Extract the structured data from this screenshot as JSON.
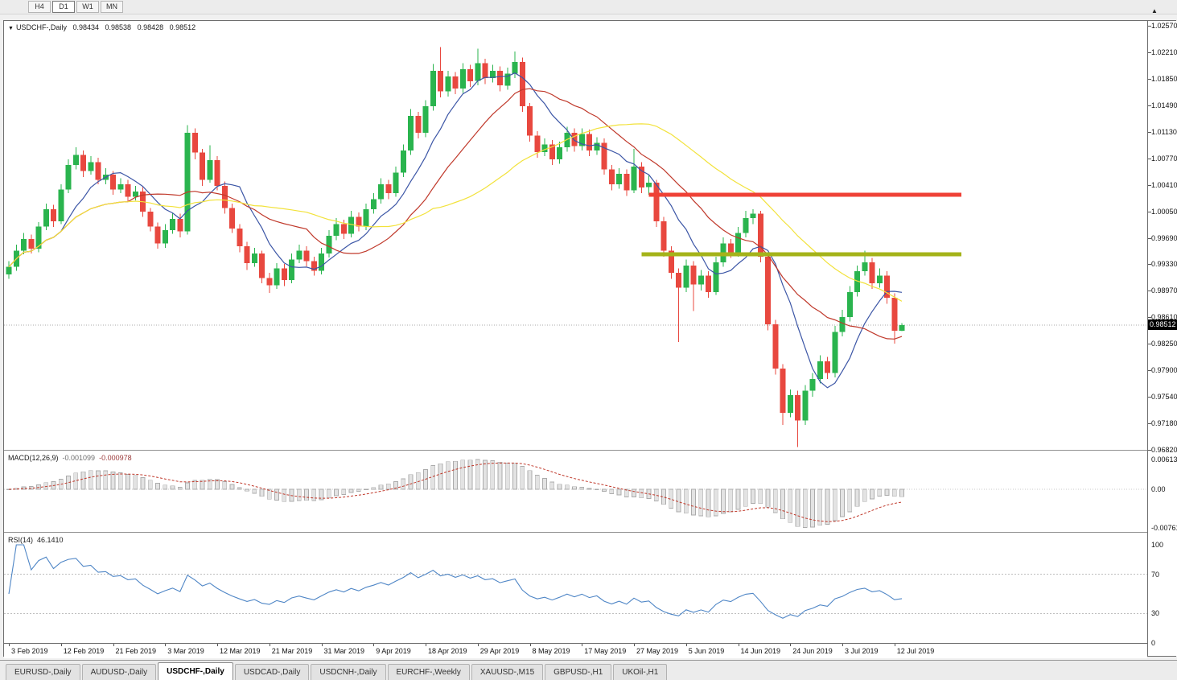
{
  "toolbar": {
    "timeframes": [
      {
        "label": "H4",
        "active": false
      },
      {
        "label": "D1",
        "active": true
      },
      {
        "label": "W1",
        "active": false
      },
      {
        "label": "MN",
        "active": false
      }
    ]
  },
  "header": {
    "symbol": "USDCHF-,Daily",
    "open": "0.98434",
    "high": "0.98538",
    "low": "0.98428",
    "close": "0.98512"
  },
  "price_axis": {
    "labels": [
      "1.02570",
      "1.02210",
      "1.01850",
      "1.01490",
      "1.01130",
      "1.00770",
      "1.00410",
      "1.00050",
      "0.99690",
      "0.99330",
      "0.98970",
      "0.98610",
      "0.98250",
      "0.97900",
      "0.97540",
      "0.97180",
      "0.96820"
    ],
    "top": 1.0257,
    "bottom": 0.9682,
    "current_price": "0.98512"
  },
  "date_axis": {
    "labels": [
      "3 Feb 2019",
      "12 Feb 2019",
      "21 Feb 2019",
      "3 Mar 2019",
      "12 Mar 2019",
      "21 Mar 2019",
      "31 Mar 2019",
      "9 Apr 2019",
      "18 Apr 2019",
      "29 Apr 2019",
      "8 May 2019",
      "17 May 2019",
      "27 May 2019",
      "5 Jun 2019",
      "14 Jun 2019",
      "24 Jun 2019",
      "3 Jul 2019",
      "12 Jul 2019"
    ]
  },
  "macd_panel": {
    "name": "MACD(12,26,9)",
    "value_main": "-0.001099",
    "value_signal": "-0.000978",
    "axis_labels": [
      "0.00613",
      "0.00",
      "-0.00761"
    ]
  },
  "rsi_panel": {
    "name": "RSI(14)",
    "value": "46.1410",
    "axis_labels": [
      "100",
      "70",
      "30",
      "0"
    ],
    "levels": [
      70,
      30
    ]
  },
  "tabs": [
    {
      "label": "EURUSD-,Daily",
      "active": false
    },
    {
      "label": "AUDUSD-,Daily",
      "active": false
    },
    {
      "label": "USDCHF-,Daily",
      "active": true
    },
    {
      "label": "USDCAD-,Daily",
      "active": false
    },
    {
      "label": "USDCNH-,Daily",
      "active": false
    },
    {
      "label": "EURCHF-,Weekly",
      "active": false
    },
    {
      "label": "XAUUSD-,M15",
      "active": false
    },
    {
      "label": "GBPUSD-,H1",
      "active": false
    },
    {
      "label": "UKOil-,H1",
      "active": false
    }
  ],
  "colors": {
    "bull": "#2ab44e",
    "bear": "#e8483f",
    "ma_fast": "#3c56a6",
    "ma_mid": "#c0392b",
    "ma_slow": "#f2e23b",
    "hline_red": "#ef4136",
    "hline_olive": "#a4b319",
    "macd_hist_fill": "#e3e3e3",
    "macd_hist_stroke": "#ababab",
    "macd_signal": "#c0392b",
    "rsi_line": "#4f86c6",
    "current_price_line": "#a8a8a8"
  },
  "chart_data": {
    "type": "candlestick",
    "symbol": "USDCHF",
    "timeframe": "Daily",
    "title": "USDCHF-,Daily",
    "moving_averages": [
      {
        "period": 8,
        "color_key": "ma_fast"
      },
      {
        "period": 17,
        "color_key": "ma_mid"
      },
      {
        "period": 34,
        "color_key": "ma_slow"
      }
    ],
    "objects": [
      {
        "type": "hline",
        "price": 1.0028,
        "color_key": "hline_red",
        "from_index": 86,
        "to_index": 128,
        "thickness": 5
      },
      {
        "type": "hline",
        "price": 0.9947,
        "color_key": "hline_olive",
        "from_index": 85,
        "to_index": 128,
        "thickness": 5
      }
    ],
    "indicators": [
      {
        "type": "MACD",
        "fast": 12,
        "slow": 26,
        "signal": 9
      },
      {
        "type": "RSI",
        "period": 14
      }
    ],
    "candles": [
      [
        0.992,
        0.9938,
        0.9914,
        0.993
      ],
      [
        0.993,
        0.996,
        0.9925,
        0.9952
      ],
      [
        0.9952,
        0.9976,
        0.9947,
        0.9968
      ],
      [
        0.9968,
        0.9974,
        0.9948,
        0.9955
      ],
      [
        0.9955,
        0.9991,
        0.995,
        0.9985
      ],
      [
        0.9985,
        1.0016,
        0.998,
        1.0008
      ],
      [
        1.0008,
        1.0014,
        0.9984,
        0.9992
      ],
      [
        0.9992,
        1.0042,
        0.9988,
        1.0035
      ],
      [
        1.0035,
        1.0076,
        1.003,
        1.0068
      ],
      [
        1.0068,
        1.0092,
        1.0062,
        1.0082
      ],
      [
        1.0082,
        1.0088,
        1.0052,
        1.006
      ],
      [
        1.006,
        1.008,
        1.0055,
        1.0072
      ],
      [
        1.0072,
        1.0078,
        1.0042,
        1.0048
      ],
      [
        1.0048,
        1.0064,
        1.0042,
        1.0055
      ],
      [
        1.0055,
        1.006,
        1.0028,
        1.0035
      ],
      [
        1.0035,
        1.005,
        1.003,
        1.0042
      ],
      [
        1.0042,
        1.0048,
        1.0018,
        1.0025
      ],
      [
        1.0025,
        1.004,
        1.002,
        1.0032
      ],
      [
        1.0032,
        1.0038,
        0.9998,
        1.0005
      ],
      [
        1.0005,
        1.001,
        0.9978,
        0.9985
      ],
      [
        0.9985,
        0.999,
        0.9955,
        0.9962
      ],
      [
        0.9962,
        0.9988,
        0.9956,
        0.998
      ],
      [
        0.998,
        1.0004,
        0.9975,
        0.9995
      ],
      [
        0.9995,
        1.0002,
        0.997,
        0.9978
      ],
      [
        0.9978,
        1.0122,
        0.9974,
        1.0112
      ],
      [
        1.0112,
        1.0118,
        1.0076,
        1.0085
      ],
      [
        1.0085,
        1.009,
        1.004,
        1.0048
      ],
      [
        1.0048,
        1.0095,
        1.0044,
        1.0075
      ],
      [
        1.0075,
        1.008,
        1.0034,
        1.004
      ],
      [
        1.004,
        1.0046,
        1.0002,
        1.001
      ],
      [
        1.001,
        1.0016,
        0.9976,
        0.9982
      ],
      [
        0.9982,
        0.9988,
        0.995,
        0.9958
      ],
      [
        0.9958,
        0.9964,
        0.9926,
        0.9935
      ],
      [
        0.9935,
        0.9956,
        0.993,
        0.9948
      ],
      [
        0.9948,
        0.9952,
        0.9908,
        0.9915
      ],
      [
        0.9915,
        0.9922,
        0.9895,
        0.9905
      ],
      [
        0.9905,
        0.9935,
        0.99,
        0.9928
      ],
      [
        0.9928,
        0.9934,
        0.9904,
        0.9912
      ],
      [
        0.9912,
        0.9948,
        0.9908,
        0.994
      ],
      [
        0.994,
        0.996,
        0.9935,
        0.9952
      ],
      [
        0.9952,
        0.9958,
        0.9931,
        0.9938
      ],
      [
        0.9938,
        0.9944,
        0.9918,
        0.9925
      ],
      [
        0.9925,
        0.9956,
        0.992,
        0.9948
      ],
      [
        0.9948,
        0.998,
        0.9943,
        0.9972
      ],
      [
        0.9972,
        0.9996,
        0.9966,
        0.9988
      ],
      [
        0.9988,
        0.9994,
        0.9968,
        0.9975
      ],
      [
        0.9975,
        1.0006,
        0.997,
        0.9998
      ],
      [
        0.9998,
        1.0004,
        0.9978,
        0.9985
      ],
      [
        0.9985,
        1.0016,
        0.998,
        1.0008
      ],
      [
        1.0008,
        1.003,
        1.0002,
        1.0022
      ],
      [
        1.0022,
        1.005,
        1.0016,
        1.0042
      ],
      [
        1.0042,
        1.0048,
        1.0022,
        1.003
      ],
      [
        1.003,
        1.0066,
        1.0025,
        1.0058
      ],
      [
        1.0058,
        1.0096,
        1.0052,
        1.0088
      ],
      [
        1.0088,
        1.0144,
        1.0082,
        1.0135
      ],
      [
        1.0135,
        1.014,
        1.0104,
        1.0112
      ],
      [
        1.0112,
        1.0156,
        1.0106,
        1.0148
      ],
      [
        1.0148,
        1.0205,
        1.0142,
        1.0196
      ],
      [
        1.0196,
        1.0228,
        1.016,
        1.0168
      ],
      [
        1.0168,
        1.0196,
        1.0161,
        1.0188
      ],
      [
        1.0188,
        1.0194,
        1.0164,
        1.0172
      ],
      [
        1.0172,
        1.0206,
        1.0166,
        1.0198
      ],
      [
        1.0198,
        1.0204,
        1.0174,
        1.0182
      ],
      [
        1.0182,
        1.0226,
        1.0176,
        1.0206
      ],
      [
        1.0206,
        1.0212,
        1.0178,
        1.0186
      ],
      [
        1.0186,
        1.0204,
        1.018,
        1.0196
      ],
      [
        1.0196,
        1.0202,
        1.0168,
        1.0176
      ],
      [
        1.0176,
        1.02,
        1.017,
        1.0192
      ],
      [
        1.0192,
        1.0222,
        1.0186,
        1.0208
      ],
      [
        1.0208,
        1.0214,
        1.014,
        1.0148
      ],
      [
        1.0148,
        1.0152,
        1.01,
        1.0108
      ],
      [
        1.0108,
        1.0114,
        1.0078,
        1.0086
      ],
      [
        1.0086,
        1.0104,
        1.008,
        1.0096
      ],
      [
        1.0096,
        1.0102,
        1.0068,
        1.0076
      ],
      [
        1.0076,
        1.01,
        1.007,
        1.0092
      ],
      [
        1.0092,
        1.012,
        1.0086,
        1.0112
      ],
      [
        1.0112,
        1.0118,
        1.0086,
        1.0094
      ],
      [
        1.0094,
        1.0118,
        1.0088,
        1.011
      ],
      [
        1.011,
        1.0116,
        1.008,
        1.0088
      ],
      [
        1.0088,
        1.0106,
        1.0082,
        1.0098
      ],
      [
        1.0098,
        1.0104,
        1.0055,
        1.0062
      ],
      [
        1.0062,
        1.0068,
        1.0034,
        1.0042
      ],
      [
        1.0042,
        1.0064,
        1.0036,
        1.0056
      ],
      [
        1.0056,
        1.0062,
        1.0026,
        1.0034
      ],
      [
        1.0034,
        1.009,
        1.003,
        1.0066
      ],
      [
        1.0066,
        1.0072,
        1.003,
        1.0038
      ],
      [
        1.0038,
        1.0054,
        1.0028,
        1.0044
      ],
      [
        1.0044,
        1.0048,
        0.9984,
        0.9992
      ],
      [
        0.9992,
        0.9998,
        0.9944,
        0.9952
      ],
      [
        0.9952,
        0.9958,
        0.9914,
        0.9922
      ],
      [
        0.9922,
        0.9928,
        0.9828,
        0.9902
      ],
      [
        0.9902,
        0.994,
        0.9896,
        0.9932
      ],
      [
        0.9932,
        0.9938,
        0.987,
        0.9906
      ],
      [
        0.9906,
        0.9926,
        0.9898,
        0.9918
      ],
      [
        0.9918,
        0.9924,
        0.9888,
        0.9896
      ],
      [
        0.9896,
        0.9944,
        0.9892,
        0.9936
      ],
      [
        0.9936,
        0.997,
        0.993,
        0.9962
      ],
      [
        0.9962,
        0.9968,
        0.9942,
        0.995
      ],
      [
        0.995,
        0.9984,
        0.9944,
        0.9976
      ],
      [
        0.9976,
        1.0006,
        0.997,
        0.9996
      ],
      [
        0.9996,
        1.0008,
        0.9988,
        1.0002
      ],
      [
        1.0002,
        1.0006,
        0.9936,
        0.9944
      ],
      [
        0.9944,
        0.9948,
        0.9844,
        0.9852
      ],
      [
        0.9852,
        0.9858,
        0.9784,
        0.9792
      ],
      [
        0.9792,
        0.9798,
        0.9716,
        0.9732
      ],
      [
        0.9732,
        0.9764,
        0.9726,
        0.9756
      ],
      [
        0.9756,
        0.9762,
        0.9686,
        0.9722
      ],
      [
        0.9722,
        0.977,
        0.9716,
        0.9762
      ],
      [
        0.9762,
        0.9786,
        0.9754,
        0.9778
      ],
      [
        0.9778,
        0.981,
        0.9772,
        0.9802
      ],
      [
        0.9802,
        0.9808,
        0.9778,
        0.9786
      ],
      [
        0.9786,
        0.985,
        0.978,
        0.9842
      ],
      [
        0.9842,
        0.9872,
        0.9836,
        0.9862
      ],
      [
        0.9862,
        0.9904,
        0.9856,
        0.9896
      ],
      [
        0.9896,
        0.9932,
        0.989,
        0.9924
      ],
      [
        0.9924,
        0.9952,
        0.9918,
        0.9936
      ],
      [
        0.9936,
        0.9942,
        0.99,
        0.9908
      ],
      [
        0.9908,
        0.9928,
        0.9902,
        0.9918
      ],
      [
        0.9918,
        0.9924,
        0.988,
        0.9888
      ],
      [
        0.9888,
        0.9894,
        0.9826,
        0.98434
      ],
      [
        0.98434,
        0.98538,
        0.98428,
        0.98512
      ]
    ]
  }
}
